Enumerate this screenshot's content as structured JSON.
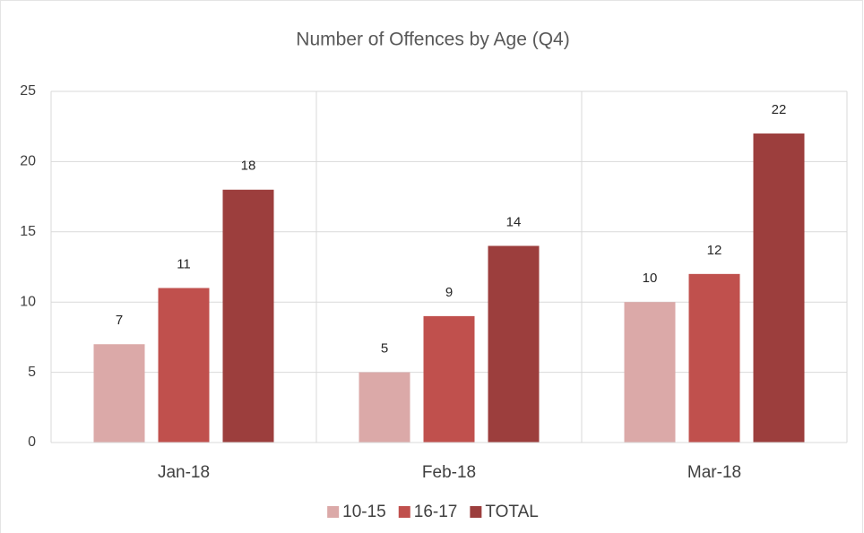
{
  "chart_data": {
    "type": "bar",
    "title": "Number of Offences by Age (Q4)",
    "categories": [
      "Jan-18",
      "Feb-18",
      "Mar-18"
    ],
    "series": [
      {
        "name": "10-15",
        "color": "#dba9a8",
        "values": [
          7,
          5,
          10
        ]
      },
      {
        "name": "16-17",
        "color": "#c0504d",
        "values": [
          11,
          9,
          12
        ]
      },
      {
        "name": "TOTAL",
        "color": "#9c3e3d",
        "values": [
          18,
          14,
          22
        ]
      }
    ],
    "ylim": [
      0,
      25
    ],
    "yticks": [
      0,
      5,
      10,
      15,
      20,
      25
    ],
    "grid": true,
    "legend": "bottom"
  }
}
